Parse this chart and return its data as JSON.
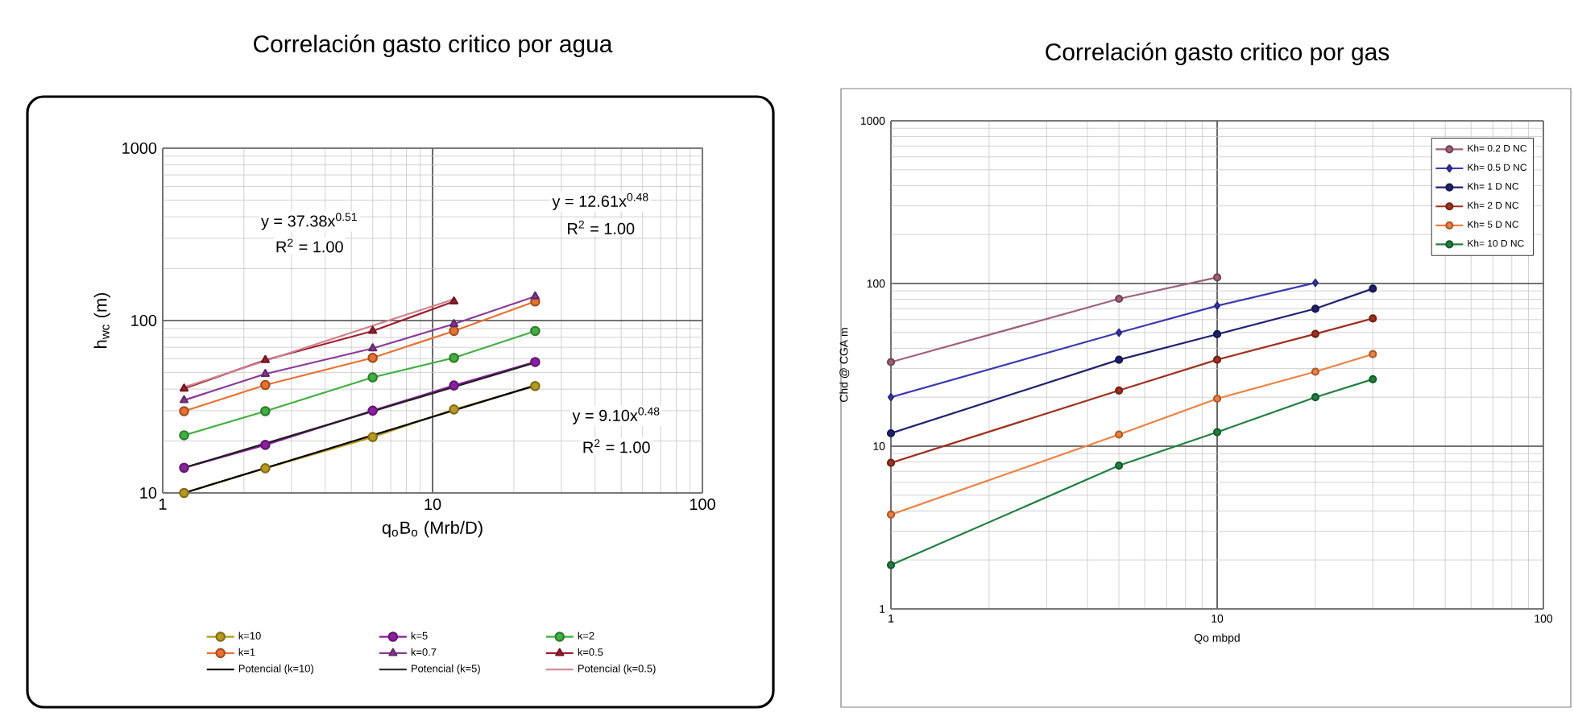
{
  "chart_data": [
    {
      "type": "line",
      "title": "Correlación gasto critico por agua",
      "xlabel": "q$_{o}$B$_{o}$ (Mrb/D)",
      "ylabel": "h$_{wc}$ (m)",
      "log": "xy",
      "grid": true,
      "legend": "bottom",
      "marker": "circle",
      "xlim": [
        1,
        100
      ],
      "ylim": [
        10,
        1000
      ],
      "xticks": [
        1,
        10,
        100
      ],
      "yticks": [
        10,
        100,
        1000
      ],
      "annotations": [
        "y = 37.38x$^{0.51}$",
        "R$^{2}$ = 1.00",
        "y = 12.61x$^{0.48}$",
        "R$^{2}$ = 1.00",
        "y = 9.10x$^{0.48}$",
        "R$^{2}$ = 1.00"
      ],
      "series": [
        {
          "name": "k=10",
          "color": "#b89a20",
          "x": [
            1.2,
            2.4,
            6,
            12,
            24
          ],
          "values": [
            10,
            13.9,
            21.1,
            30.5,
            41.7
          ]
        },
        {
          "name": "k=5",
          "color": "#8a20a0",
          "x": [
            1.2,
            2.4,
            6,
            12,
            24
          ],
          "values": [
            14,
            19,
            30,
            42,
            57.5
          ]
        },
        {
          "name": "k=2",
          "color": "#40b040",
          "x": [
            1.2,
            2.4,
            6,
            12,
            24
          ],
          "values": [
            21.6,
            29.8,
            46.8,
            60.8,
            87
          ]
        },
        {
          "name": "k=1",
          "color": "#e87030",
          "x": [
            1.2,
            2.4,
            6,
            12,
            24
          ],
          "values": [
            29.8,
            42.3,
            60.8,
            87,
            129
          ]
        },
        {
          "name": "k=0.7",
          "color": "#8a3a9a",
          "marker": "triangle",
          "x": [
            1.2,
            2.4,
            6,
            12,
            24
          ],
          "values": [
            34.5,
            49,
            69,
            95.5,
            138
          ]
        },
        {
          "name": "k=0.5",
          "color": "#a02030",
          "marker": "triangle",
          "x": [
            1.2,
            2.4,
            6,
            12
          ],
          "values": [
            40.3,
            59,
            87,
            129
          ]
        },
        {
          "name": "Potencial (k=10)",
          "color": "#000000",
          "marker": "none",
          "x": [
            1.2,
            24
          ],
          "values": [
            10,
            42
          ]
        },
        {
          "name": "Potencial (k=5)",
          "color": "#202020",
          "marker": "none",
          "x": [
            1.2,
            24
          ],
          "values": [
            14,
            57
          ]
        },
        {
          "name": "Potencial (k=0.5)",
          "color": "#d08090",
          "marker": "none",
          "x": [
            1.2,
            12
          ],
          "values": [
            41,
            133
          ]
        }
      ]
    },
    {
      "type": "line",
      "title": "Correlación gasto critico por gas",
      "xlabel": "Qo mbpd",
      "ylabel": "Chd @ CGA m",
      "log": "xy",
      "grid": true,
      "legend": "top right",
      "marker": "circle",
      "xlim": [
        1,
        100
      ],
      "ylim": [
        1,
        1000
      ],
      "xticks": [
        1,
        10,
        100
      ],
      "yticks": [
        1,
        10,
        100,
        1000
      ],
      "series": [
        {
          "name": "Kh= 0.2 D NC",
          "color": "#a0607a",
          "x": [
            1,
            5,
            10
          ],
          "values": [
            32.9,
            80.5,
            109
          ]
        },
        {
          "name": "Kh= 0.5 D NC",
          "color": "#3a3ab0",
          "marker": "diamond",
          "x": [
            1,
            5,
            10,
            20
          ],
          "values": [
            20,
            49.9,
            73,
            101
          ]
        },
        {
          "name": "Kh= 1 D NC",
          "color": "#202070",
          "x": [
            1,
            5,
            10,
            20,
            30
          ],
          "values": [
            12,
            34,
            48.8,
            70,
            93
          ]
        },
        {
          "name": "Kh= 2 D NC",
          "color": "#a03020",
          "x": [
            1,
            5,
            10,
            20,
            30
          ],
          "values": [
            7.9,
            22,
            34,
            49,
            61
          ]
        },
        {
          "name": "Kh= 5 D NC",
          "color": "#f08040",
          "x": [
            1,
            5,
            10,
            20,
            30
          ],
          "values": [
            3.8,
            11.8,
            19.6,
            28.7,
            36.8
          ]
        },
        {
          "name": "Kh= 10 D NC",
          "color": "#208040",
          "x": [
            1,
            5,
            10,
            20,
            30
          ],
          "values": [
            1.86,
            7.6,
            12.2,
            20,
            25.8
          ]
        }
      ]
    }
  ]
}
